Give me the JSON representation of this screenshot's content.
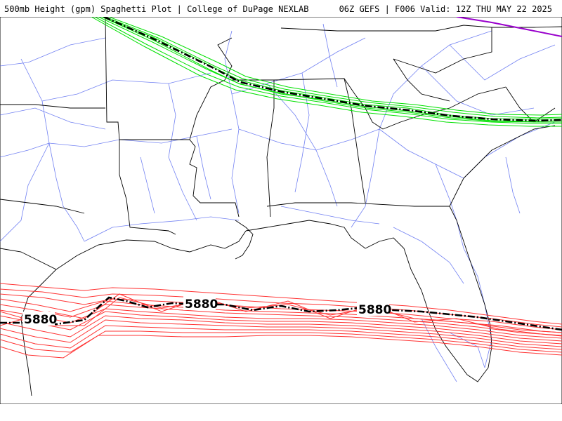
{
  "header": {
    "title_left": "500mb Height (gpm) Spaghetti Plot | College of DuPage NEXLAB",
    "title_right": "06Z GEFS | F006 Valid: 12Z THU MAY 22 2025"
  },
  "map": {
    "contours": [
      {
        "value": "5880",
        "color": "#ff3333",
        "mean_color": "#000000"
      },
      {
        "value": "5880",
        "color": "#ff3333",
        "mean_color": "#000000"
      }
    ],
    "north_contour_color": "#00e000",
    "purple_contour_color": "#9900cc",
    "road_color": "#4a5ef0",
    "border_color": "#000000"
  }
}
